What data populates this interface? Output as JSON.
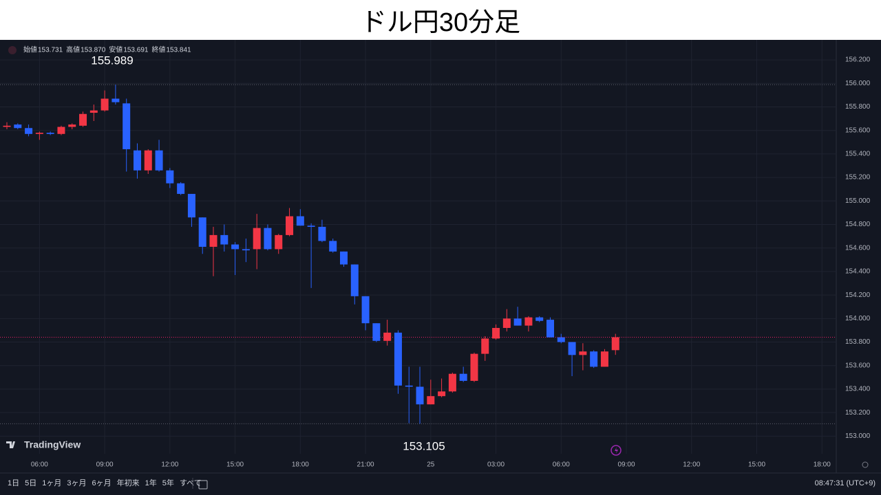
{
  "chart_data": {
    "type": "candlestick",
    "title": "ドル円30分足",
    "categories": [
      null,
      null,
      null,
      "06:00",
      null,
      null,
      null,
      null,
      null,
      "09:00",
      null,
      null,
      null,
      null,
      null,
      "12:00",
      null,
      null,
      null,
      null,
      null,
      "15:00",
      null,
      null,
      null,
      null,
      null,
      "18:00",
      null,
      null,
      null,
      null,
      null,
      "21:00",
      null,
      null,
      null,
      null,
      null,
      "25",
      null,
      null,
      null,
      null,
      null,
      "03:00",
      null,
      null,
      null,
      null,
      null,
      "06:00",
      null,
      null,
      null,
      null,
      null,
      "09:00",
      null,
      null,
      null,
      null,
      null,
      "12:00",
      null,
      null,
      null,
      null,
      null,
      "15:00",
      null,
      null,
      null,
      null,
      null,
      "18:00",
      null
    ],
    "open": [
      155.63,
      155.65,
      155.62,
      155.57,
      155.58,
      155.57,
      155.63,
      155.64,
      155.75,
      155.77,
      155.87,
      155.83,
      155.43,
      155.26,
      155.43,
      155.26,
      155.15,
      155.06,
      154.86,
      154.61,
      154.71,
      154.63,
      154.59,
      154.59,
      154.77,
      154.59,
      154.71,
      154.87,
      154.79,
      154.78,
      154.66,
      154.57,
      154.46,
      154.19,
      153.96,
      153.81,
      153.88,
      153.43,
      153.42,
      153.27,
      153.34,
      153.38,
      153.53,
      153.47,
      153.7,
      153.83,
      153.92,
      154.0,
      153.94,
      154.01,
      153.99,
      153.84,
      153.8,
      153.69,
      153.72,
      153.59,
      153.731,
      null,
      null,
      null,
      null,
      null,
      null,
      null,
      null,
      null,
      null,
      null,
      null,
      null,
      null,
      null,
      null,
      null,
      null,
      null,
      null
    ],
    "high": [
      155.67,
      155.66,
      155.65,
      155.59,
      155.59,
      155.64,
      155.66,
      155.76,
      155.82,
      155.94,
      155.989,
      155.87,
      155.49,
      155.44,
      155.52,
      155.28,
      155.16,
      155.06,
      154.86,
      154.78,
      154.8,
      154.65,
      154.68,
      154.89,
      154.8,
      154.72,
      154.94,
      154.93,
      154.81,
      154.84,
      154.68,
      154.57,
      154.46,
      154.19,
      153.96,
      153.99,
      153.9,
      153.59,
      153.59,
      153.48,
      153.49,
      153.54,
      153.59,
      153.71,
      153.85,
      153.95,
      154.08,
      154.1,
      154.02,
      154.02,
      154.01,
      153.87,
      153.8,
      153.79,
      153.73,
      153.74,
      153.87,
      null,
      null,
      null,
      null,
      null,
      null,
      null,
      null,
      null,
      null,
      null,
      null,
      null,
      null,
      null,
      null,
      null,
      null,
      null,
      null
    ],
    "low": [
      155.61,
      155.61,
      155.55,
      155.52,
      155.56,
      155.56,
      155.61,
      155.63,
      155.68,
      155.76,
      155.82,
      155.25,
      155.19,
      155.23,
      155.25,
      155.11,
      155.05,
      154.78,
      154.55,
      154.36,
      154.57,
      154.37,
      154.48,
      154.42,
      154.58,
      154.55,
      154.7,
      154.79,
      154.26,
      154.65,
      154.56,
      154.44,
      154.12,
      153.9,
      153.8,
      153.77,
      153.36,
      153.11,
      153.105,
      153.27,
      153.33,
      153.37,
      153.46,
      153.46,
      153.64,
      153.82,
      153.89,
      153.94,
      153.89,
      153.97,
      153.84,
      153.79,
      153.51,
      153.56,
      153.58,
      153.59,
      153.691,
      null,
      null,
      null,
      null,
      null,
      null,
      null,
      null,
      null,
      null,
      null,
      null,
      null,
      null,
      null,
      null,
      null,
      null,
      null,
      null
    ],
    "close": [
      155.64,
      155.62,
      155.57,
      155.58,
      155.57,
      155.63,
      155.65,
      155.74,
      155.77,
      155.87,
      155.84,
      155.44,
      155.26,
      155.43,
      155.26,
      155.15,
      155.06,
      154.86,
      154.61,
      154.71,
      154.63,
      154.59,
      154.58,
      154.77,
      154.59,
      154.71,
      154.87,
      154.79,
      154.78,
      154.66,
      154.57,
      154.46,
      154.19,
      153.96,
      153.81,
      153.88,
      153.43,
      153.42,
      153.27,
      153.34,
      153.38,
      153.53,
      153.47,
      153.7,
      153.83,
      153.92,
      154.0,
      153.94,
      154.01,
      153.98,
      153.84,
      153.8,
      153.69,
      153.72,
      153.59,
      153.72,
      153.841,
      null,
      null,
      null,
      null,
      null,
      null,
      null,
      null,
      null,
      null,
      null,
      null,
      null,
      null,
      null,
      null,
      null,
      null,
      null,
      null
    ],
    "up_color": "#f23645",
    "down_color": "#2962ff",
    "price_line_color": "#e91e63",
    "ylim": [
      152.85,
      156.37
    ],
    "yticks": [
      {
        "value": 153.0,
        "label": "153.000"
      },
      {
        "value": 153.2,
        "label": "153.200"
      },
      {
        "value": 153.4,
        "label": "153.400"
      },
      {
        "value": 153.6,
        "label": "153.600"
      },
      {
        "value": 153.8,
        "label": "153.800"
      },
      {
        "value": 154.0,
        "label": "154.000"
      },
      {
        "value": 154.2,
        "label": "154.200"
      },
      {
        "value": 154.4,
        "label": "154.400"
      },
      {
        "value": 154.6,
        "label": "154.600"
      },
      {
        "value": 154.8,
        "label": "154.800"
      },
      {
        "value": 155.0,
        "label": "155.000"
      },
      {
        "value": 155.2,
        "label": "155.200"
      },
      {
        "value": 155.4,
        "label": "155.400"
      },
      {
        "value": 155.6,
        "label": "155.600"
      },
      {
        "value": 155.8,
        "label": "155.800"
      },
      {
        "value": 156.0,
        "label": "156.000"
      },
      {
        "value": 156.2,
        "label": "156.200"
      }
    ],
    "grid": true,
    "annotations": [
      155.989,
      153.105
    ],
    "ohlc_legend": [
      {
        "name": "始値",
        "value": 153.731,
        "label": "153.731"
      },
      {
        "name": "高値",
        "value": 153.87,
        "label": "153.870"
      },
      {
        "name": "安値",
        "value": 153.691,
        "label": "153.691"
      },
      {
        "name": "終値",
        "value": 153.841,
        "label": "153.841"
      }
    ]
  },
  "ui": {
    "brand": "TradingView",
    "ranges": [
      "1日",
      "5日",
      "1ヶ月",
      "3ヶ月",
      "6ヶ月",
      "年初来",
      "1年",
      "5年",
      "すべて"
    ],
    "clock": "08:47:31 (UTC+9)"
  }
}
